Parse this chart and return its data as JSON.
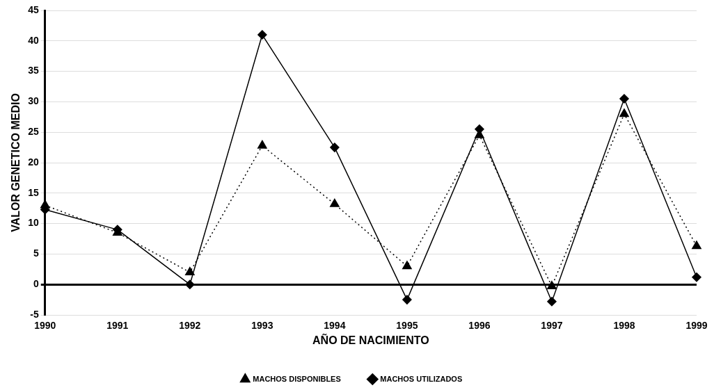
{
  "chart_data": {
    "type": "line",
    "xlabel": "AÑO DE NACIMIENTO",
    "ylabel": "VALOR GENETICO MEDIO",
    "categories": [
      "1990",
      "1991",
      "1992",
      "1993",
      "1994",
      "1995",
      "1996",
      "1997",
      "1998",
      "1999"
    ],
    "series": [
      {
        "name": "MACHOS DISPONIBLES",
        "color": "#000000",
        "marker": "triangle",
        "line_style": "dotted",
        "values": [
          13,
          8.5,
          2,
          22.8,
          13.2,
          3,
          24.5,
          -0.3,
          28,
          6.3
        ]
      },
      {
        "name": "MACHOS UTILIZADOS",
        "color": "#000000",
        "marker": "diamond",
        "line_style": "solid",
        "values": [
          12.3,
          9,
          0,
          41,
          22.5,
          -2.5,
          25.5,
          -2.8,
          30.5,
          1.2
        ]
      }
    ],
    "ylim": [
      -5,
      45
    ],
    "yticks": [
      -5,
      0,
      5,
      10,
      15,
      20,
      25,
      30,
      35,
      40,
      45
    ],
    "grid": "y",
    "legend": "bottom"
  }
}
